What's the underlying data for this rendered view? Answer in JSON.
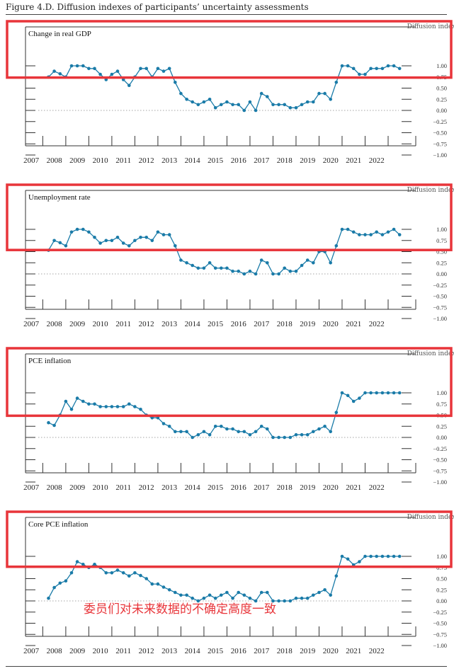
{
  "figure_title": "Figure 4.D. Diffusion indexes of participants’ uncertainty assessments",
  "annotation": "委员们对未来数据的不确定高度一致",
  "colors": {
    "series": "#1a7ba8",
    "highlight": "#e8353a",
    "axis": "#333333"
  },
  "chart_data": [
    {
      "type": "line",
      "title": "Change in real GDP",
      "ylabel": "Diffusion index",
      "ylim": [
        -1.0,
        1.0
      ],
      "yticks": [
        "1.00",
        "0.75",
        "0.50",
        "0.25",
        "0.00",
        "−0.25",
        "−0.50",
        "−0.75",
        "−1.00"
      ],
      "x_tick_labels": [
        "2007",
        "2008",
        "2009",
        "2010",
        "2011",
        "2012",
        "2013",
        "2014",
        "2015",
        "2016",
        "2017",
        "2018",
        "2019",
        "2020",
        "2021",
        "2022"
      ],
      "x_start": 2007.75,
      "x_step": 0.25,
      "highlight_ymin": 0.8,
      "values": [
        0.75,
        0.88,
        0.82,
        0.75,
        1.0,
        1.0,
        1.0,
        0.94,
        0.94,
        0.81,
        0.69,
        0.81,
        0.88,
        0.69,
        0.56,
        0.75,
        0.94,
        0.94,
        0.75,
        0.94,
        0.88,
        0.94,
        0.63,
        0.38,
        0.25,
        0.19,
        0.13,
        0.19,
        0.25,
        0.06,
        0.13,
        0.19,
        0.13,
        0.13,
        0.0,
        0.19,
        0.0,
        0.38,
        0.31,
        0.13,
        0.13,
        0.13,
        0.06,
        0.06,
        0.13,
        0.19,
        0.19,
        0.38,
        0.38,
        0.25,
        0.63,
        1.0,
        1.0,
        0.94,
        0.81,
        0.81,
        0.94,
        0.94,
        0.94,
        1.0,
        1.0,
        0.94
      ]
    },
    {
      "type": "line",
      "title": "Unemployment rate",
      "ylabel": "Diffusion index",
      "ylim": [
        -1.0,
        1.0
      ],
      "yticks": [
        "1.00",
        "0.75",
        "0.50",
        "0.25",
        "0.00",
        "−0.25",
        "−0.50",
        "−0.75",
        "−1.00"
      ],
      "x_tick_labels": [
        "2007",
        "2008",
        "2009",
        "2010",
        "2011",
        "2012",
        "2013",
        "2014",
        "2015",
        "2016",
        "2017",
        "2018",
        "2019",
        "2020",
        "2021",
        "2022"
      ],
      "x_start": 2007.75,
      "x_step": 0.25,
      "highlight_ymin": 0.6,
      "values": [
        0.53,
        0.75,
        0.7,
        0.63,
        0.94,
        1.0,
        1.0,
        0.94,
        0.82,
        0.69,
        0.75,
        0.75,
        0.82,
        0.69,
        0.63,
        0.75,
        0.82,
        0.82,
        0.75,
        0.94,
        0.88,
        0.88,
        0.63,
        0.31,
        0.25,
        0.19,
        0.13,
        0.13,
        0.25,
        0.13,
        0.13,
        0.13,
        0.06,
        0.06,
        0.0,
        0.06,
        0.0,
        0.31,
        0.25,
        0.0,
        0.0,
        0.13,
        0.06,
        0.06,
        0.19,
        0.31,
        0.25,
        0.5,
        0.5,
        0.25,
        0.63,
        1.0,
        1.0,
        0.94,
        0.88,
        0.88,
        0.88,
        0.94,
        0.88,
        0.94,
        1.0,
        0.88
      ]
    },
    {
      "type": "line",
      "title": "PCE inflation",
      "ylabel": "Diffusion index",
      "ylim": [
        -1.0,
        1.0
      ],
      "yticks": [
        "1.00",
        "0.75",
        "0.50",
        "0.25",
        "0.00",
        "−0.25",
        "−0.50",
        "−0.75",
        "−1.00"
      ],
      "x_tick_labels": [
        "2007",
        "2008",
        "2009",
        "2010",
        "2011",
        "2012",
        "2013",
        "2014",
        "2015",
        "2016",
        "2017",
        "2018",
        "2019",
        "2020",
        "2021",
        "2022"
      ],
      "x_start": 2007.75,
      "x_step": 0.25,
      "highlight_ymin": 0.55,
      "values": [
        0.33,
        0.27,
        0.5,
        0.81,
        0.63,
        0.88,
        0.81,
        0.75,
        0.75,
        0.69,
        0.69,
        0.69,
        0.69,
        0.69,
        0.75,
        0.69,
        0.63,
        0.5,
        0.44,
        0.44,
        0.31,
        0.25,
        0.13,
        0.13,
        0.13,
        0.0,
        0.06,
        0.13,
        0.06,
        0.25,
        0.25,
        0.19,
        0.19,
        0.13,
        0.13,
        0.06,
        0.13,
        0.25,
        0.19,
        0.0,
        0.0,
        0.0,
        0.0,
        0.06,
        0.06,
        0.06,
        0.13,
        0.19,
        0.25,
        0.13,
        0.56,
        1.0,
        0.94,
        0.81,
        0.88,
        1.0,
        1.0,
        1.0,
        1.0,
        1.0,
        1.0,
        1.0
      ]
    },
    {
      "type": "line",
      "title": "Core PCE inflation",
      "ylabel": "Diffusion index",
      "ylim": [
        -1.0,
        1.0
      ],
      "yticks": [
        "1.00",
        "0.75",
        "0.50",
        "0.25",
        "0.00",
        "−0.25",
        "−0.50",
        "−0.75",
        "−1.00"
      ],
      "x_tick_labels": [
        "2007",
        "2008",
        "2009",
        "2010",
        "2011",
        "2012",
        "2013",
        "2014",
        "2015",
        "2016",
        "2017",
        "2018",
        "2019",
        "2020",
        "2021",
        "2022"
      ],
      "x_start": 2007.75,
      "x_step": 0.25,
      "highlight_ymin": 0.83,
      "values": [
        0.06,
        0.3,
        0.4,
        0.45,
        0.63,
        0.88,
        0.82,
        0.75,
        0.82,
        0.75,
        0.63,
        0.63,
        0.69,
        0.63,
        0.56,
        0.63,
        0.57,
        0.5,
        0.38,
        0.38,
        0.31,
        0.25,
        0.19,
        0.13,
        0.13,
        0.06,
        0.0,
        0.06,
        0.13,
        0.06,
        0.13,
        0.19,
        0.06,
        0.19,
        0.13,
        0.06,
        0.0,
        0.19,
        0.19,
        0.0,
        0.0,
        0.0,
        0.0,
        0.06,
        0.06,
        0.06,
        0.13,
        0.19,
        0.25,
        0.13,
        0.56,
        1.0,
        0.94,
        0.81,
        0.88,
        1.0,
        1.0,
        1.0,
        1.0,
        1.0,
        1.0,
        1.0
      ]
    }
  ]
}
